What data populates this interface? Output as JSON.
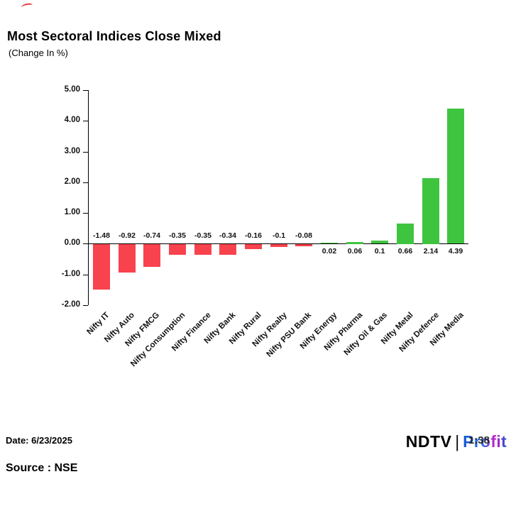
{
  "page": {
    "title": "Most Sectoral Indices Close Mixed",
    "subtitle": "(Change In %)"
  },
  "chart_data": {
    "type": "bar",
    "title": "Most Sectoral Indices Close Mixed",
    "subtitle": "(Change In %)",
    "xlabel": "",
    "ylabel": "",
    "categories": [
      "Nifty IT",
      "Nifty Auto",
      "Nifty FMCG",
      "Nifty Consumption",
      "Nifty Finance",
      "Nifty Bank",
      "Nifty Rural",
      "Nifty Realty",
      "Nifty PSU Bank",
      "Nifty Energy",
      "Nifty Pharma",
      "Nifty Oil & Gas",
      "Nifty Metal",
      "Nifty Defence",
      "Nifty Media"
    ],
    "values": [
      -1.48,
      -0.92,
      -0.74,
      -0.35,
      -0.35,
      -0.34,
      -0.16,
      -0.1,
      -0.08,
      0.02,
      0.06,
      0.1,
      0.66,
      2.14,
      4.39
    ],
    "value_labels": [
      "-1.48",
      "-0.92",
      "-0.74",
      "-0.35",
      "-0.35",
      "-0.34",
      "-0.16",
      "-0.1",
      "-0.08",
      "0.02",
      "0.06",
      "0.1",
      "0.66",
      "2.14",
      "4.39"
    ],
    "ylim": [
      -2,
      5
    ],
    "yticks": [
      5,
      4,
      3,
      2,
      1,
      0,
      -1,
      -2
    ],
    "ytick_labels": [
      "5.00",
      "4.00",
      "3.00",
      "2.00",
      "1.00",
      "0.00",
      "-1.00",
      "-2.00"
    ],
    "grid": false,
    "legend": false,
    "colors": {
      "positive": "#3fc440",
      "negative": "#f8424d"
    }
  },
  "footer": {
    "date_label": "Date: 6/23/2025",
    "source_label": "Source : NSE",
    "logo": {
      "ndtv": "NDTV",
      "separator": "|",
      "profit": "Profit",
      "overlay_text": "1:38"
    }
  }
}
